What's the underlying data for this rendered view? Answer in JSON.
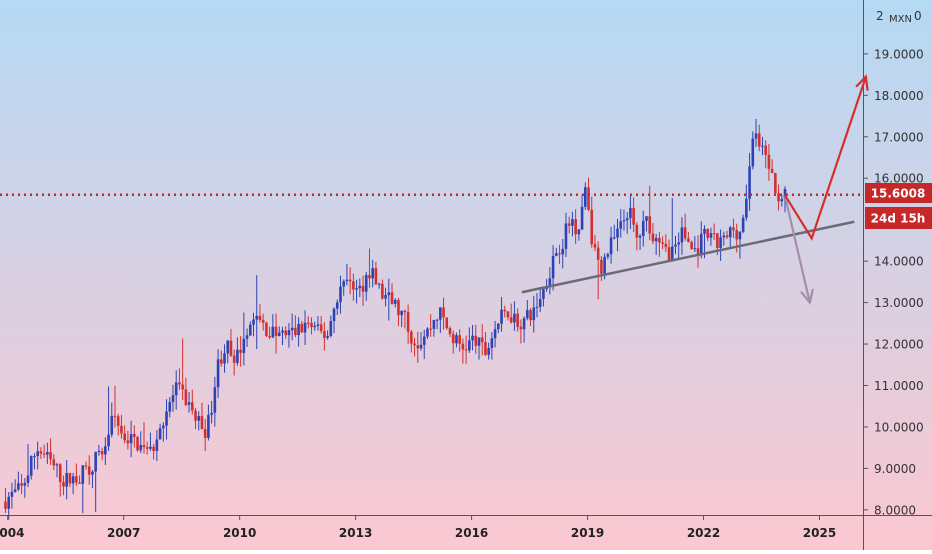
{
  "chart_data": {
    "type": "candlestick",
    "currency_label": "MXN",
    "y_axis_top_label": "2",
    "y_axis_top_value": "0",
    "x_ticks": [
      "2004",
      "2007",
      "2010",
      "2013",
      "2016",
      "2019",
      "2022",
      "2025"
    ],
    "y_ticks": [
      "19.0000",
      "18.0000",
      "17.0000",
      "16.0000",
      "14.0000",
      "13.0000",
      "12.0000",
      "11.0000",
      "10.0000",
      "9.0000",
      "8.0000"
    ],
    "ylim": [
      7.9,
      20.3
    ],
    "xlim": [
      2003.8,
      2026.1
    ],
    "current_price": {
      "label": "15.6008",
      "value": 15.6008
    },
    "countdown_label": "24d 15h",
    "colors": {
      "up": "#2d43b5",
      "down": "#d32f2f",
      "price_line": "#c62828",
      "trendline": "#6d6a78",
      "arrow_up": "#d32f2f",
      "arrow_down": "#a58fa8",
      "bg_top": "#b5d9f4",
      "bg_bottom": "#fbc8d1"
    },
    "anchors": [
      [
        2003.9,
        8.2
      ],
      [
        2004.4,
        8.5
      ],
      [
        2004.8,
        9.5
      ],
      [
        2005.1,
        9.2
      ],
      [
        2005.5,
        8.7
      ],
      [
        2005.9,
        8.8
      ],
      [
        2006.2,
        9.1
      ],
      [
        2006.5,
        9.4
      ],
      [
        2006.8,
        10.3
      ],
      [
        2007.0,
        9.8
      ],
      [
        2007.4,
        9.6
      ],
      [
        2007.7,
        9.3
      ],
      [
        2008.1,
        10.3
      ],
      [
        2008.4,
        10.9
      ],
      [
        2008.7,
        10.6
      ],
      [
        2008.9,
        10.2
      ],
      [
        2009.2,
        9.9
      ],
      [
        2009.5,
        11.6
      ],
      [
        2009.7,
        12.0
      ],
      [
        2009.9,
        11.4
      ],
      [
        2010.2,
        12.4
      ],
      [
        2010.5,
        12.6
      ],
      [
        2010.8,
        12.3
      ],
      [
        2011.1,
        12.2
      ],
      [
        2011.5,
        12.3
      ],
      [
        2011.8,
        12.5
      ],
      [
        2012.0,
        12.3
      ],
      [
        2012.3,
        12.2
      ],
      [
        2012.6,
        13.3
      ],
      [
        2012.9,
        13.6
      ],
      [
        2013.1,
        13.2
      ],
      [
        2013.4,
        13.8
      ],
      [
        2013.7,
        13.2
      ],
      [
        2014.0,
        13.0
      ],
      [
        2014.3,
        12.6
      ],
      [
        2014.6,
        12.0
      ],
      [
        2014.9,
        12.3
      ],
      [
        2015.2,
        12.8
      ],
      [
        2015.5,
        12.2
      ],
      [
        2015.8,
        11.9
      ],
      [
        2016.1,
        12.1
      ],
      [
        2016.4,
        11.8
      ],
      [
        2016.7,
        12.5
      ],
      [
        2017.0,
        12.8
      ],
      [
        2017.3,
        12.5
      ],
      [
        2017.6,
        12.7
      ],
      [
        2017.9,
        13.3
      ],
      [
        2018.2,
        14.2
      ],
      [
        2018.4,
        14.5
      ],
      [
        2018.6,
        15.0
      ],
      [
        2018.8,
        14.8
      ],
      [
        2019.0,
        15.9
      ],
      [
        2019.2,
        14.2
      ],
      [
        2019.4,
        13.9
      ],
      [
        2019.6,
        14.3
      ],
      [
        2019.9,
        14.8
      ],
      [
        2020.1,
        15.3
      ],
      [
        2020.3,
        14.5
      ],
      [
        2020.6,
        15.0
      ],
      [
        2020.9,
        14.3
      ],
      [
        2021.2,
        14.2
      ],
      [
        2021.5,
        14.7
      ],
      [
        2021.8,
        14.2
      ],
      [
        2022.1,
        14.6
      ],
      [
        2022.4,
        14.4
      ],
      [
        2022.6,
        14.5
      ],
      [
        2022.8,
        14.8
      ],
      [
        2023.0,
        14.7
      ],
      [
        2023.2,
        15.9
      ],
      [
        2023.35,
        17.4
      ],
      [
        2023.5,
        16.6
      ],
      [
        2023.7,
        16.5
      ],
      [
        2023.9,
        15.6
      ],
      [
        2024.1,
        15.6
      ]
    ],
    "trendline": [
      [
        2017.3,
        13.25
      ],
      [
        2025.9,
        14.95
      ]
    ],
    "forecast_up": [
      [
        2024.1,
        15.6
      ],
      [
        2024.8,
        14.55
      ],
      [
        2026.2,
        18.45
      ]
    ],
    "forecast_down": [
      [
        2024.1,
        15.6
      ],
      [
        2024.75,
        13.0
      ]
    ]
  }
}
